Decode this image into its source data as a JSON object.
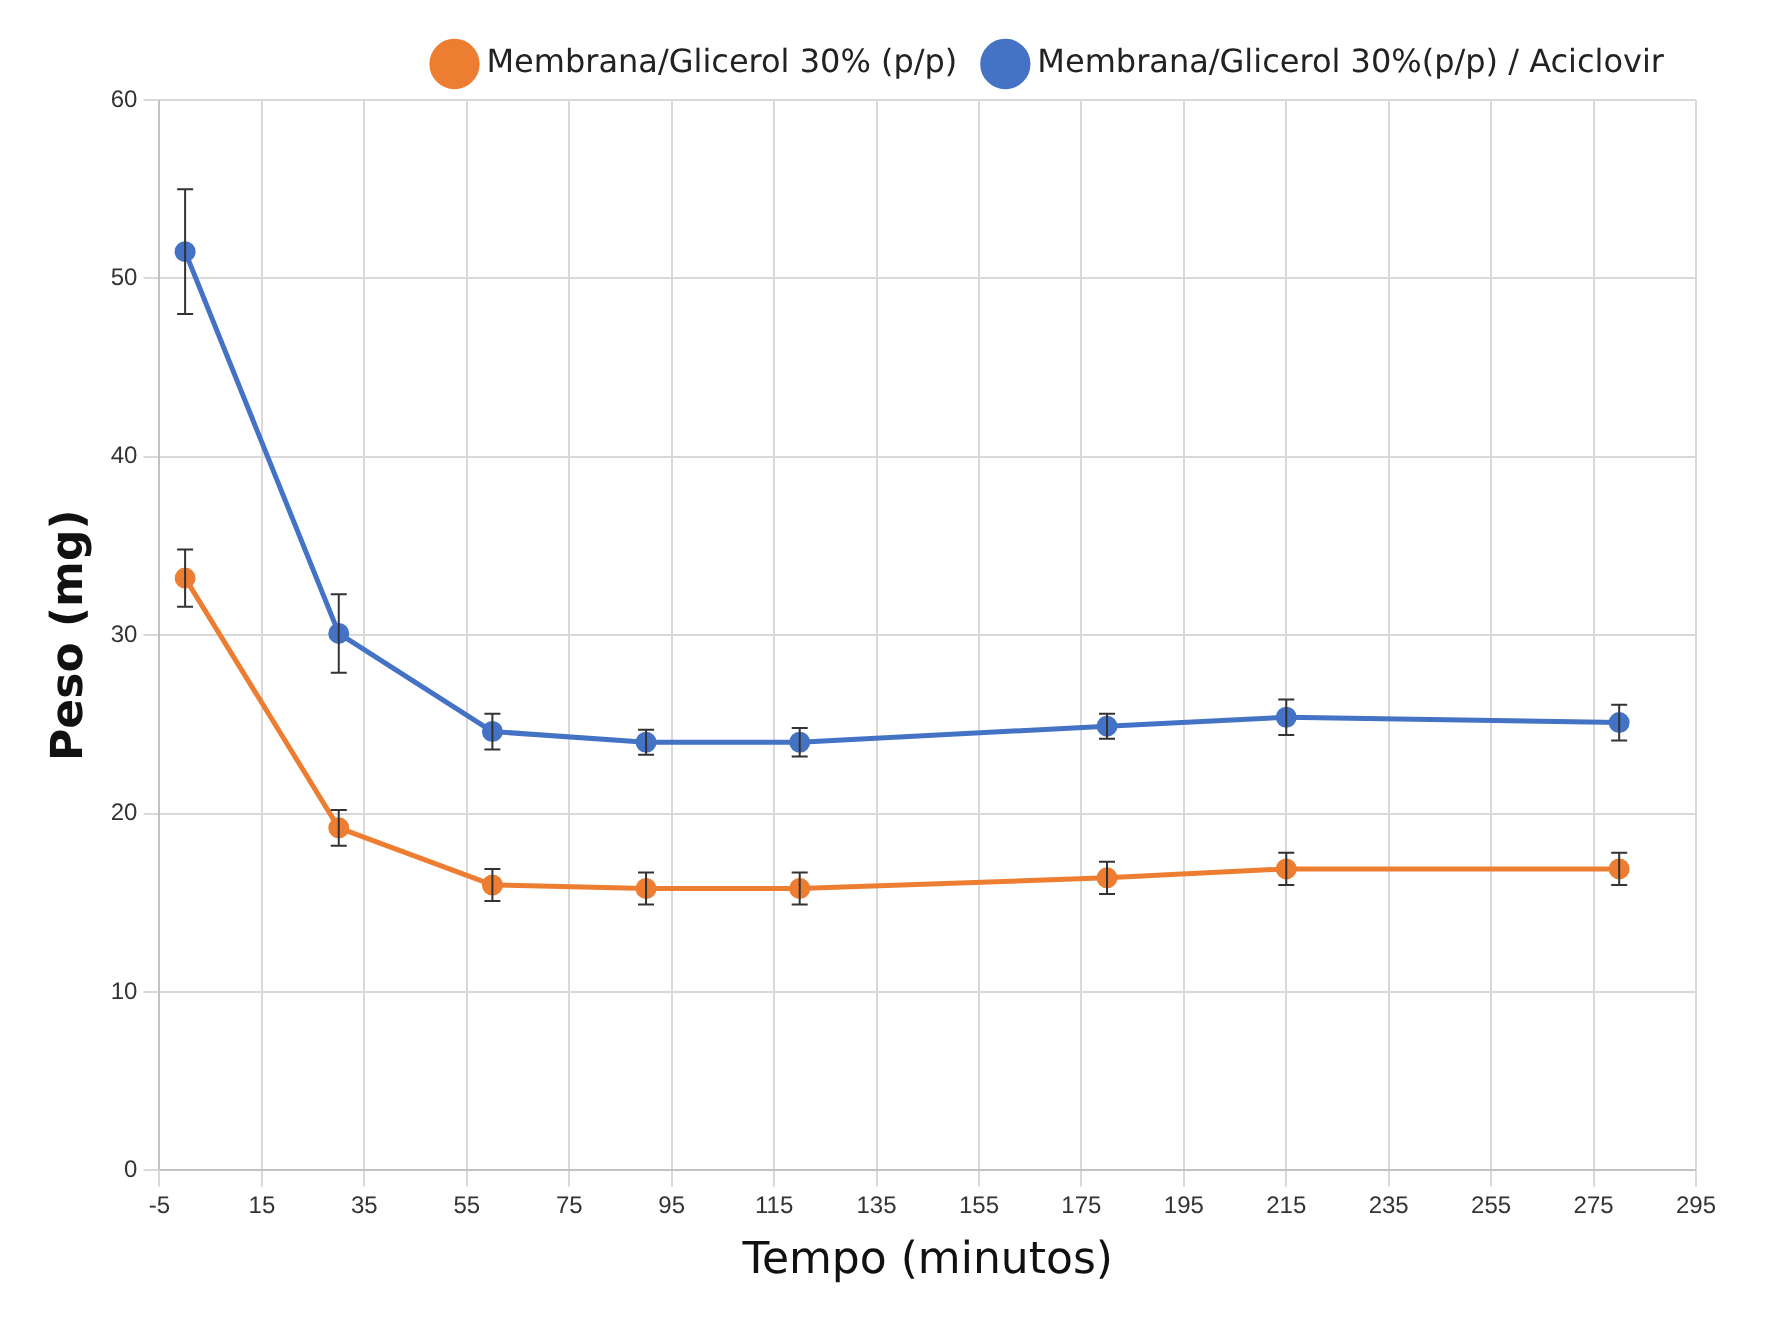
{
  "chart_data": {
    "type": "line",
    "xlabel": "Tempo (minutos)",
    "ylabel": "Peso (mg)",
    "x": [
      0,
      30,
      60,
      90,
      120,
      180,
      215,
      280
    ],
    "series": [
      {
        "name": "Membrana/Glicerol 30% (p/p)",
        "color": "#ed7d31",
        "values": [
          33.2,
          19.2,
          16.0,
          15.8,
          15.8,
          16.4,
          16.9,
          16.9
        ],
        "errors": [
          1.6,
          1.0,
          0.9,
          0.9,
          0.9,
          0.9,
          0.9,
          0.9
        ]
      },
      {
        "name": "Membrana/Glicerol 30%(p/p) / Aciclovir",
        "color": "#4472c4",
        "values": [
          51.5,
          30.1,
          24.6,
          24.0,
          24.0,
          24.9,
          25.4,
          25.1
        ],
        "errors": [
          3.5,
          2.2,
          1.0,
          0.7,
          0.8,
          0.7,
          1.0,
          1.0
        ]
      }
    ],
    "xlim": [
      -5,
      295
    ],
    "xticks": [
      -5,
      15,
      35,
      55,
      75,
      95,
      115,
      135,
      155,
      175,
      195,
      215,
      235,
      255,
      275,
      295
    ],
    "ylim": [
      0,
      60
    ],
    "yticks": [
      0,
      10,
      20,
      30,
      40,
      50,
      60
    ],
    "grid": true,
    "legend": "top right",
    "marker": "circle",
    "line_style": "solid"
  }
}
